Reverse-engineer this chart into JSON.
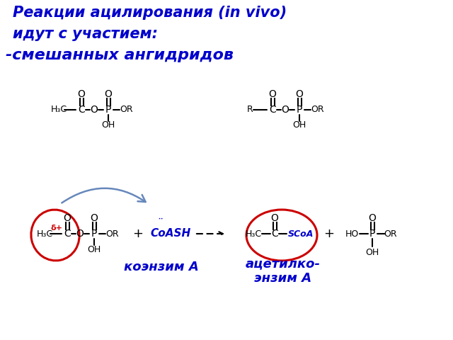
{
  "title_line1": "Реакции ацилирования (in vivo)",
  "title_line2": "идут с участием:",
  "subtitle": "-смешанных ангидридов",
  "title_color": "#0000cc",
  "subtitle_color": "#0000cc",
  "bg_color": "#ffffff",
  "label_coenzyme": "коэнзим А",
  "label_acetyl": "ацетилко-\nэнзим А",
  "label_coenzyme_color": "#0000cc",
  "label_acetyl_color": "#0000cc",
  "delta_color": "#cc0000",
  "arrow_color": "#6688bb",
  "ellipse_color": "#cc0000",
  "bond_color": "#000000",
  "coash_color": "#0000cc",
  "scoa_color": "#0000cc"
}
